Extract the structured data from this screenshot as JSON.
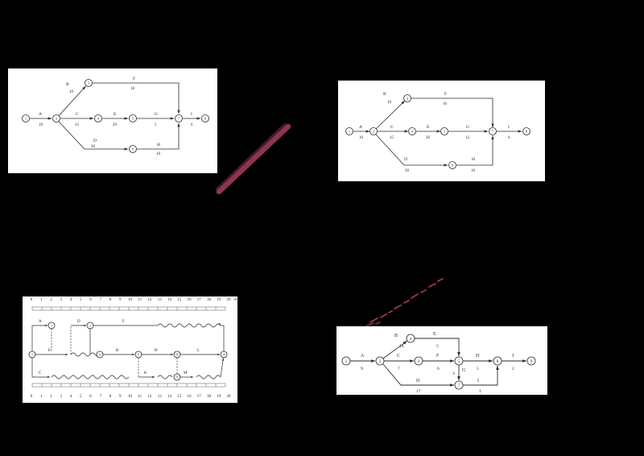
{
  "colors": {
    "background": "#000000",
    "panel": "#ffffff",
    "ink": "#2b2b2b",
    "marker_streak": "#8d3550",
    "handwriting": "#a13a55"
  },
  "top_left_network": {
    "nodes": [
      "1",
      "2",
      "3",
      "4",
      "5",
      "6",
      "7",
      "8"
    ],
    "activities": [
      {
        "label": "A",
        "duration": "10"
      },
      {
        "label": "B",
        "duration": "10"
      },
      {
        "label": "F",
        "duration": "18"
      },
      {
        "label": "C",
        "duration": "15"
      },
      {
        "label": "E",
        "duration": "20"
      },
      {
        "label": "G",
        "duration": "5"
      },
      {
        "label": "D",
        "duration": "30"
      },
      {
        "label": "H",
        "duration": "10"
      },
      {
        "label": "I",
        "duration": "6"
      }
    ]
  },
  "top_right_network": {
    "nodes": [
      "1",
      "2",
      "3",
      "4",
      "5",
      "6",
      "7",
      "8"
    ],
    "activities": [
      {
        "label": "A",
        "duration": "10"
      },
      {
        "label": "B",
        "duration": "10"
      },
      {
        "label": "F",
        "duration": "16"
      },
      {
        "label": "C",
        "duration": "15"
      },
      {
        "label": "E",
        "duration": "20"
      },
      {
        "label": "G",
        "duration": "12"
      },
      {
        "label": "D",
        "duration": "30"
      },
      {
        "label": "H",
        "duration": "10"
      },
      {
        "label": "I",
        "duration": "6"
      }
    ]
  },
  "time_scaled_plan": {
    "unit_label": "/d",
    "ticks": [
      "0",
      "1",
      "2",
      "3",
      "4",
      "5",
      "6",
      "7",
      "8",
      "9",
      "10",
      "11",
      "12",
      "13",
      "14",
      "15",
      "16",
      "17",
      "18",
      "19",
      "20"
    ],
    "nodes": [
      "1",
      "2",
      "3",
      "4",
      "6",
      "8",
      "9",
      "10"
    ],
    "activities": [
      {
        "label": "A"
      },
      {
        "label": "D"
      },
      {
        "label": "F"
      },
      {
        "label": "E"
      },
      {
        "label": "B"
      },
      {
        "label": "H"
      },
      {
        "label": "L"
      },
      {
        "label": "C"
      },
      {
        "label": "K"
      },
      {
        "label": "M"
      }
    ]
  },
  "bottom_right_network": {
    "nodes": [
      "1",
      "2",
      "3",
      "4",
      "5",
      "7",
      "8",
      "9"
    ],
    "activities": [
      {
        "label": "A",
        "duration": "9"
      },
      {
        "label": "B",
        "duration": "14"
      },
      {
        "label": "E",
        "duration": "5"
      },
      {
        "label": "C",
        "duration": "7"
      },
      {
        "label": "F",
        "duration": "6"
      },
      {
        "label": "G",
        "duration": "3"
      },
      {
        "label": "D",
        "duration": "17"
      },
      {
        "label": "I",
        "duration": "1"
      },
      {
        "label": "H",
        "duration": "5"
      },
      {
        "label": "J",
        "duration": "2"
      }
    ]
  }
}
